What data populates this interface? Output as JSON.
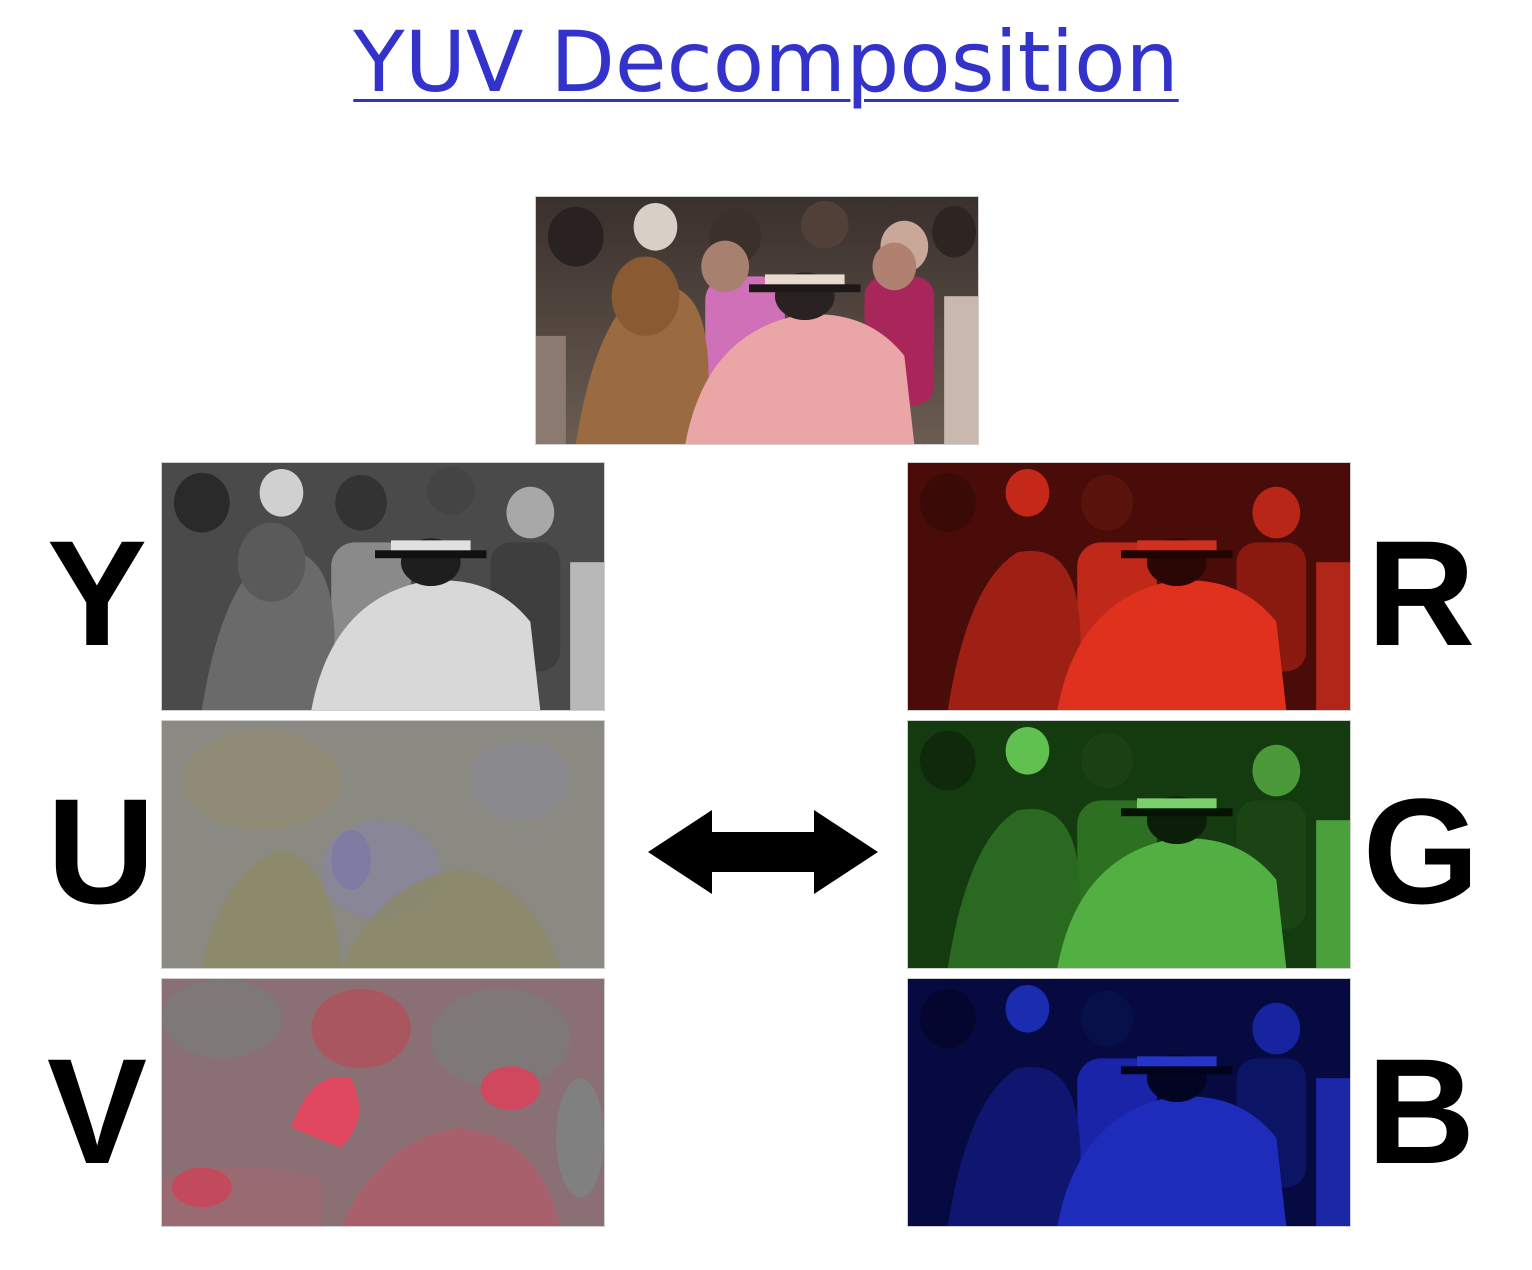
{
  "title": "YUV Decomposition",
  "yuv_labels": {
    "y": "Y",
    "u": "U",
    "v": "V"
  },
  "rgb_labels": {
    "r": "R",
    "g": "G",
    "b": "B"
  },
  "icons": {
    "arrow": "double-headed-arrow-icon"
  },
  "colors": {
    "title": "#3333cc",
    "y_tint": "#808080",
    "u_tint": "#8a8a78",
    "v_tint": "#b0606c",
    "r_tint": "#d42a1c",
    "g_tint": "#3cb02c",
    "b_tint": "#1a24b8"
  }
}
